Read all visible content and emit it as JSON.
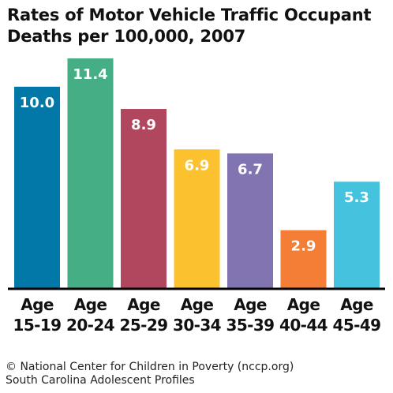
{
  "chart_data": {
    "type": "bar",
    "title": "Rates of Motor Vehicle Traffic Occupant Deaths per 100,000, 2007",
    "categories": [
      "Age 15-19",
      "Age 20-24",
      "Age 25-29",
      "Age 30-34",
      "Age 35-39",
      "Age 40-44",
      "Age 45-49"
    ],
    "category_lines": [
      [
        "Age",
        "15-19"
      ],
      [
        "Age",
        "20-24"
      ],
      [
        "Age",
        "25-29"
      ],
      [
        "Age",
        "30-34"
      ],
      [
        "Age",
        "35-39"
      ],
      [
        "Age",
        "40-44"
      ],
      [
        "Age",
        "45-49"
      ]
    ],
    "values": [
      10.0,
      11.4,
      8.9,
      6.9,
      6.7,
      2.9,
      5.3
    ],
    "value_labels": [
      "10.0",
      "11.4",
      "8.9",
      "6.9",
      "6.7",
      "2.9",
      "5.3"
    ],
    "colors": [
      "#0278A8",
      "#46AE84",
      "#B0475E",
      "#FCC12F",
      "#8274B1",
      "#F57E36",
      "#45C3DE"
    ],
    "xlabel": "",
    "ylabel": "",
    "ylim": [
      0,
      11.4
    ],
    "grid": false,
    "legend": "none"
  },
  "footer": {
    "line1": "© National Center for Children in Poverty (nccp.org)",
    "line2": "South Carolina Adolescent Profiles"
  }
}
